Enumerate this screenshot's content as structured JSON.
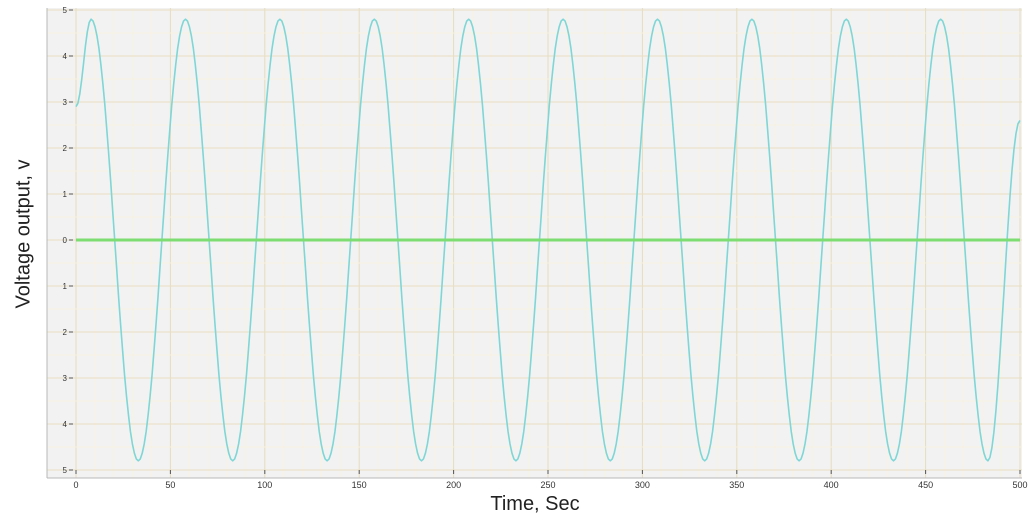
{
  "chart_data": {
    "type": "line",
    "xlabel": "Time, Sec",
    "ylabel": "Voltage output, v",
    "xlim": [
      0,
      500
    ],
    "ylim": [
      -5,
      5
    ],
    "x_ticks": [
      0,
      50,
      100,
      150,
      200,
      250,
      300,
      350,
      400,
      450,
      500
    ],
    "y_ticks": [
      {
        "value": 5,
        "label": "5"
      },
      {
        "value": 4,
        "label": "4"
      },
      {
        "value": 3,
        "label": "3"
      },
      {
        "value": 2,
        "label": "2"
      },
      {
        "value": 1,
        "label": "1"
      },
      {
        "value": 0,
        "label": "0"
      },
      {
        "value": -1,
        "label": "1"
      },
      {
        "value": -2,
        "label": "2"
      },
      {
        "value": -3,
        "label": "3"
      },
      {
        "value": -4,
        "label": "4"
      },
      {
        "value": -5,
        "label": "5"
      }
    ],
    "grid": true,
    "series": [
      {
        "color": "#7fd6d6",
        "x": [
          0,
          8,
          33,
          58,
          83,
          108,
          133,
          158,
          183,
          208,
          233,
          258,
          283,
          308,
          333,
          358,
          383,
          408,
          433,
          458,
          483,
          500
        ],
        "y": [
          2.9,
          4.8,
          -4.8,
          4.8,
          -4.8,
          4.8,
          -4.8,
          4.8,
          -4.8,
          4.8,
          -4.8,
          4.8,
          -4.8,
          4.8,
          -4.8,
          4.8,
          -4.8,
          4.8,
          -4.8,
          4.8,
          -4.8,
          2.6
        ]
      },
      {
        "color": "#7ddc72",
        "x": [
          0,
          500
        ],
        "y": [
          0,
          0
        ]
      }
    ]
  }
}
